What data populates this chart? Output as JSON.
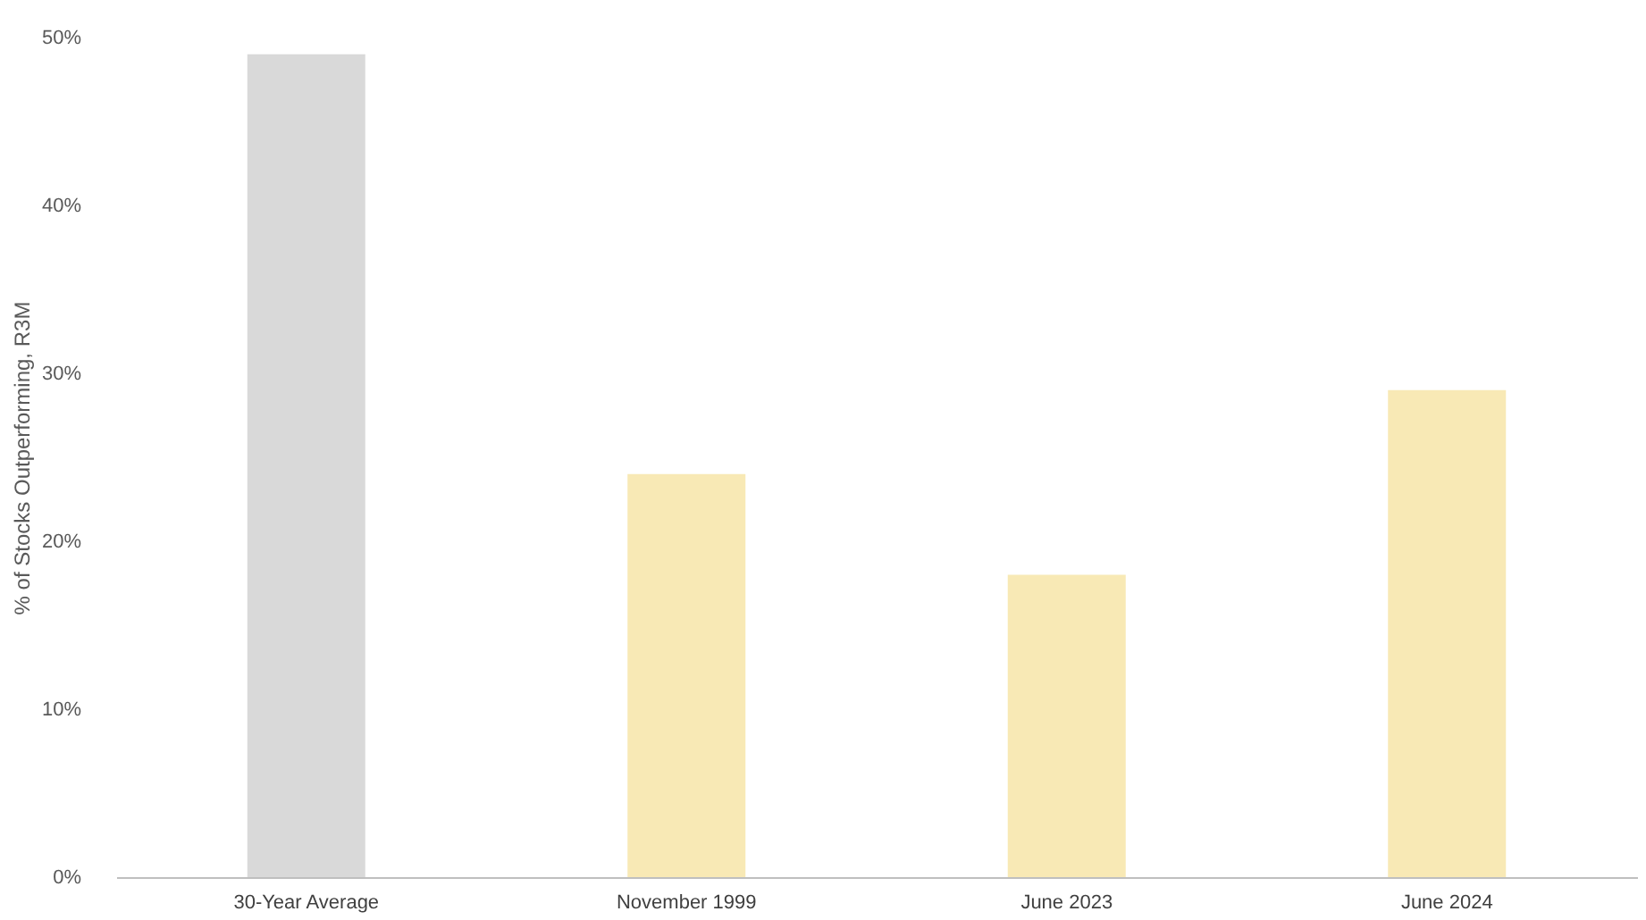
{
  "chart_data": {
    "type": "bar",
    "ylabel": "% of Stocks Outperforming, R3M",
    "categories": [
      "30-Year Average",
      "November 1999",
      "June 2023",
      "June 2024"
    ],
    "values": [
      49,
      24,
      18,
      29
    ],
    "colors": [
      "#d9d9d9",
      "#f8e9b5",
      "#f8e9b5",
      "#f8e9b5"
    ],
    "ylim": [
      0,
      50
    ],
    "yticks": [
      {
        "value": 0,
        "label": "0%"
      },
      {
        "value": 10,
        "label": "10%"
      },
      {
        "value": 20,
        "label": "20%"
      },
      {
        "value": 30,
        "label": "30%"
      },
      {
        "value": 40,
        "label": "40%"
      },
      {
        "value": 50,
        "label": "50%"
      }
    ],
    "grid": false
  }
}
